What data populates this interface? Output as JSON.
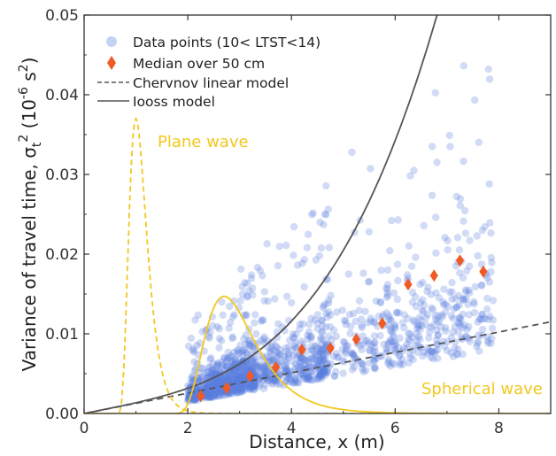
{
  "chart_data": {
    "type": "scatter",
    "xlabel": "Distance, x (m)",
    "ylabel": "Variance of travel time, σt² (10⁻⁶ s²)",
    "ylabel_parts": {
      "pre": "Variance of travel time, σ",
      "sub": "t",
      "sup": "2",
      "mid": " (10",
      "exp": "-6",
      "unit": " s",
      "unit_exp": "2",
      "post": ")"
    },
    "xlim": [
      0,
      9
    ],
    "ylim": [
      0,
      0.05
    ],
    "x_ticks": [
      0,
      2,
      4,
      6,
      8
    ],
    "x_tick_labels": [
      "0",
      "2",
      "4",
      "6",
      "8"
    ],
    "y_ticks": [
      0,
      0.01,
      0.02,
      0.03,
      0.04,
      0.05
    ],
    "y_tick_labels": [
      "0.00",
      "0.01",
      "0.02",
      "0.03",
      "0.04",
      "0.05"
    ],
    "colors": {
      "data_points": "#5b7fe0",
      "median": "#f05a24",
      "model_lines": "#555555",
      "waves": "#f2c81f"
    },
    "legend": {
      "placement": "top-left",
      "entries": [
        {
          "label": "Data points (10< LTST<14)",
          "marker": "circle"
        },
        {
          "label": "Median over 50 cm",
          "marker": "diamond"
        },
        {
          "label": "Chervnov linear model",
          "marker": "dashed-line"
        },
        {
          "label": "Iooss model",
          "marker": "solid-line"
        }
      ]
    },
    "annotations": [
      {
        "text": "Plane wave",
        "color": "#f2c81f"
      },
      {
        "text": "Spherical wave",
        "color": "#f2c81f"
      }
    ],
    "data_cloud": {
      "x_range": [
        2,
        8
      ],
      "count": 1500,
      "note_dense_band_y": [
        0.0,
        0.012
      ]
    },
    "median_points": {
      "x": [
        2.25,
        2.75,
        3.2,
        3.7,
        4.2,
        4.75,
        5.25,
        5.75,
        6.25,
        6.75,
        7.25,
        7.7
      ],
      "y": [
        0.0022,
        0.0032,
        0.0047,
        0.0058,
        0.008,
        0.0082,
        0.0093,
        0.0113,
        0.0162,
        0.0173,
        0.0192,
        0.0178
      ]
    },
    "linear_model": {
      "x": [
        0,
        9
      ],
      "y": [
        0,
        0.0115
      ]
    },
    "iooss_model": {
      "a": 0.0013,
      "b": 5e-05,
      "power": 3.5
    },
    "plane_wave": {
      "x0": 0.55,
      "peak_x": 1.0,
      "peak_y": 0.037,
      "sigma": 0.38
    },
    "spherical_wave": {
      "x0": 1.55,
      "peak_x": 2.7,
      "peak_y": 0.0147,
      "sigma": 0.42
    }
  }
}
